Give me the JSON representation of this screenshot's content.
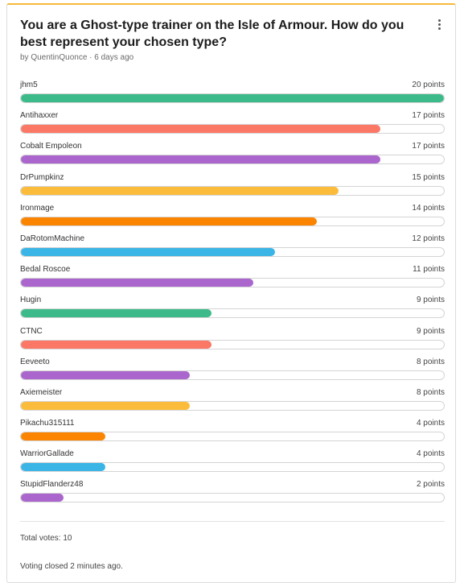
{
  "poll": {
    "title": "You are a Ghost-type trainer on the Isle of Armour. How do you best represent your chosen type?",
    "byline": "by QuentinQuonce · 6 days ago",
    "menu_icon": "more-vertical-icon",
    "accent_color": "#f6b93b",
    "max_points": 20,
    "options": [
      {
        "name": "jhm5",
        "points_label": "20 points",
        "points": 20,
        "color": "#3dba8a"
      },
      {
        "name": "Antihaxxer",
        "points_label": "17 points",
        "points": 17,
        "color": "#fb7766"
      },
      {
        "name": "Cobalt Empoleon",
        "points_label": "17 points",
        "points": 17,
        "color": "#aa66cc"
      },
      {
        "name": "DrPumpkinz",
        "points_label": "15 points",
        "points": 15,
        "color": "#fbbc3b"
      },
      {
        "name": "Ironmage",
        "points_label": "14 points",
        "points": 14,
        "color": "#fb8500"
      },
      {
        "name": "DaRotomMachine",
        "points_label": "12 points",
        "points": 12,
        "color": "#3bb4e6"
      },
      {
        "name": "Bedal Roscoe",
        "points_label": "11 points",
        "points": 11,
        "color": "#aa66cc"
      },
      {
        "name": "Hugin",
        "points_label": "9 points",
        "points": 9,
        "color": "#3dba8a"
      },
      {
        "name": "CTNC",
        "points_label": "9 points",
        "points": 9,
        "color": "#fb7766"
      },
      {
        "name": "Eeveeto",
        "points_label": "8 points",
        "points": 8,
        "color": "#aa66cc"
      },
      {
        "name": "Axiemeister",
        "points_label": "8 points",
        "points": 8,
        "color": "#fbbc3b"
      },
      {
        "name": "Pikachu315111",
        "points_label": "4 points",
        "points": 4,
        "color": "#fb8500"
      },
      {
        "name": "WarriorGallade",
        "points_label": "4 points",
        "points": 4,
        "color": "#3bb4e6"
      },
      {
        "name": "StupidFlanderz48",
        "points_label": "2 points",
        "points": 2,
        "color": "#aa66cc"
      }
    ],
    "total_votes": "Total votes: 10",
    "status": "Voting closed 2 minutes ago."
  }
}
